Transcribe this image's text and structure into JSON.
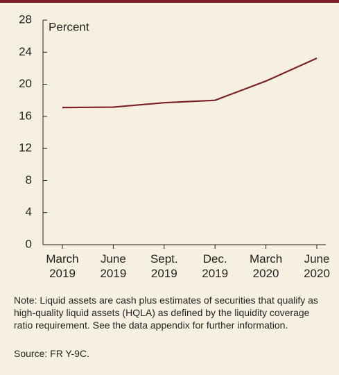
{
  "chart_data": {
    "type": "line",
    "y_label": "Percent",
    "categories": [
      "March 2019",
      "June 2019",
      "Sept. 2019",
      "Dec. 2019",
      "March 2020",
      "June 2020"
    ],
    "series": [
      {
        "name": "Liquid assets",
        "color": "#7b2027",
        "values": [
          17.1,
          17.15,
          17.7,
          18.0,
          20.4,
          23.25
        ]
      }
    ],
    "ylim": [
      0,
      28
    ],
    "yticks": [
      0,
      4,
      8,
      12,
      16,
      20,
      24,
      28
    ],
    "note": "Note: Liquid assets are cash plus estimates of securities that qualify as high-quality liquid assets (HQLA) as defined by the liquidity coverage ratio requirement. See the data appendix for further information.",
    "source": "Source: FR Y-9C."
  }
}
